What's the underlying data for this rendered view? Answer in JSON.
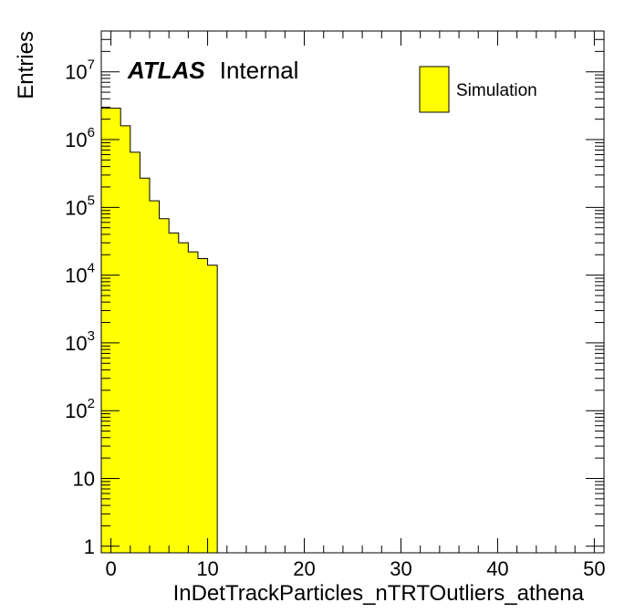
{
  "chart_data": {
    "type": "bar",
    "title": "",
    "xlabel": "InDetTrackParticles_nTRTOutliers_athena",
    "ylabel": "Entries",
    "xlim": [
      -1,
      51
    ],
    "ylim": [
      0.8,
      40000000
    ],
    "yscale": "log",
    "grid": false,
    "legend_position": "top-right",
    "bin_width": 1,
    "bins": [
      {
        "x": -0.5,
        "value": 2900000
      },
      {
        "x": 0.5,
        "value": 2900000
      },
      {
        "x": 1.5,
        "value": 1600000
      },
      {
        "x": 2.5,
        "value": 650000
      },
      {
        "x": 3.5,
        "value": 270000
      },
      {
        "x": 4.5,
        "value": 125000
      },
      {
        "x": 5.5,
        "value": 68000
      },
      {
        "x": 6.5,
        "value": 42000
      },
      {
        "x": 7.5,
        "value": 30000
      },
      {
        "x": 8.5,
        "value": 22000
      },
      {
        "x": 9.5,
        "value": 17500
      },
      {
        "x": 10.5,
        "value": 14000
      }
    ],
    "x_ticks": [
      {
        "value": 0,
        "label": "0"
      },
      {
        "value": 10,
        "label": "10"
      },
      {
        "value": 20,
        "label": "20"
      },
      {
        "value": 30,
        "label": "30"
      },
      {
        "value": 40,
        "label": "40"
      },
      {
        "value": 50,
        "label": "50"
      }
    ],
    "y_ticks": [
      {
        "value": 1,
        "base": "1",
        "exp": ""
      },
      {
        "value": 10,
        "base": "10",
        "exp": ""
      },
      {
        "value": 100,
        "base": "10",
        "exp": "2"
      },
      {
        "value": 1000,
        "base": "10",
        "exp": "3"
      },
      {
        "value": 10000,
        "base": "10",
        "exp": "4"
      },
      {
        "value": 100000,
        "base": "10",
        "exp": "5"
      },
      {
        "value": 1000000,
        "base": "10",
        "exp": "6"
      },
      {
        "value": 10000000,
        "base": "10",
        "exp": "7"
      }
    ],
    "series": [
      {
        "name": "Simulation",
        "fill_color": "#ffff00",
        "line_color": "#000000"
      }
    ],
    "annotation": {
      "bold": "ATLAS",
      "rest": "Internal"
    }
  }
}
